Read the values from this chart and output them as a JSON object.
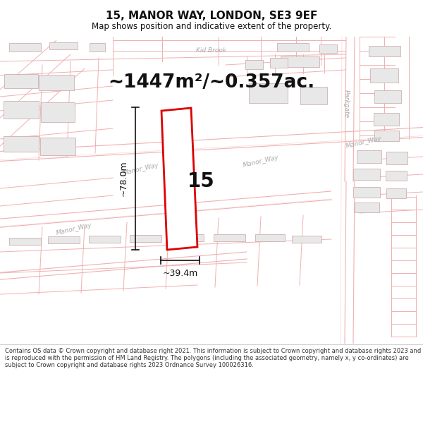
{
  "title": "15, MANOR WAY, LONDON, SE3 9EF",
  "subtitle": "Map shows position and indicative extent of the property.",
  "area_text": "~1447m²/~0.357ac.",
  "number_label": "15",
  "width_label": "~39.4m",
  "height_label": "~78.0m",
  "footer_text": "Contains OS data © Crown copyright and database right 2021. This information is subject to Crown copyright and database rights 2023 and is reproduced with the permission of HM Land Registry. The polygons (including the associated geometry, namely x, y co-ordinates) are subject to Crown copyright and database rights 2023 Ordnance Survey 100026316.",
  "bg_color": "#ffffff",
  "road_color": "#f0b8b8",
  "building_fill": "#e8e8e8",
  "building_edge": "#d0b0b0",
  "plot_outline_color": "#dd0000",
  "plot_fill": "#ffffff",
  "dim_line_color": "#111111",
  "text_color": "#111111",
  "gray_label_color": "#aaaaaa",
  "title_fontsize": 11,
  "subtitle_fontsize": 8.5,
  "area_fontsize": 19,
  "number_fontsize": 20,
  "dim_fontsize": 9,
  "label_fontsize": 6.5,
  "footer_fontsize": 6.0
}
